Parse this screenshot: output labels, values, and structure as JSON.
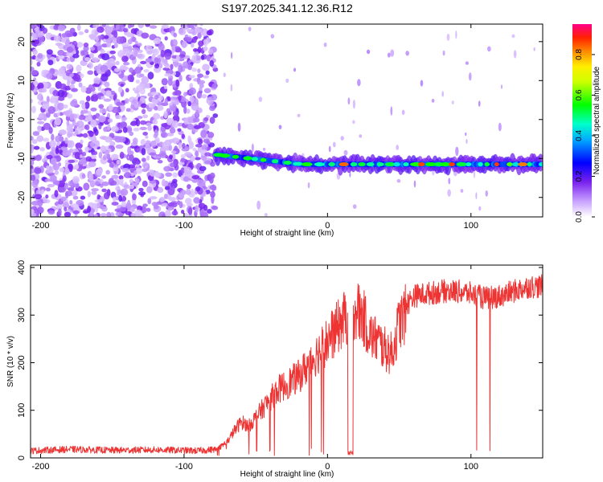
{
  "chart_data": [
    {
      "type": "heatmap",
      "title": "S197.2025.341.12.36.R12",
      "xlabel": "Height of straight line (km)",
      "ylabel": "Frequency (Hz)",
      "xlim": [
        -207,
        150
      ],
      "ylim": [
        -25,
        24.5
      ],
      "xticks": [
        -200,
        -100,
        0,
        100
      ],
      "yticks": [
        20,
        10,
        0,
        -10,
        -20
      ],
      "colorbar": {
        "label": "Normalized spectral amplitude",
        "range": [
          0,
          0.95
        ],
        "ticks": [
          "0.0",
          "0.2",
          "0.4",
          "0.6",
          "0.8"
        ],
        "tick_values": [
          0,
          0.2,
          0.4,
          0.6,
          0.8
        ]
      },
      "regions": [
        {
          "name": "noise",
          "x_range": [
            -207,
            -78
          ],
          "freq_range": [
            -25,
            24.5
          ],
          "amplitude_range": [
            0.05,
            0.2
          ]
        },
        {
          "name": "signal",
          "x_range": [
            -78,
            150
          ],
          "freq_start": -9,
          "freq_end": -11.5,
          "amplitude_range": [
            0.2,
            0.95
          ]
        }
      ]
    },
    {
      "type": "line",
      "xlabel": "Height of straight line (km)",
      "ylabel": "SNR (10 * v/v)",
      "xlim": [
        -207,
        150
      ],
      "ylim": [
        0,
        405
      ],
      "xticks": [
        -200,
        -100,
        0,
        100
      ],
      "yticks": [
        0,
        100,
        200,
        300,
        400
      ],
      "color": "#ee3333",
      "x": [
        -207,
        -180,
        -150,
        -120,
        -90,
        -78,
        -70,
        -65,
        -60,
        -55,
        -50,
        -45,
        -40,
        -35,
        -30,
        -25,
        -20,
        -15,
        -10,
        -5,
        0,
        5,
        10,
        15,
        20,
        25,
        30,
        35,
        40,
        45,
        50,
        55,
        60,
        70,
        80,
        90,
        100,
        110,
        120,
        130,
        140,
        150
      ],
      "values": [
        15,
        18,
        16,
        17,
        15,
        18,
        35,
        60,
        80,
        70,
        90,
        110,
        130,
        150,
        160,
        170,
        180,
        200,
        220,
        240,
        260,
        280,
        300,
        320,
        330,
        310,
        270,
        260,
        240,
        230,
        300,
        320,
        340,
        345,
        350,
        350,
        345,
        335,
        340,
        350,
        360,
        360
      ]
    }
  ]
}
